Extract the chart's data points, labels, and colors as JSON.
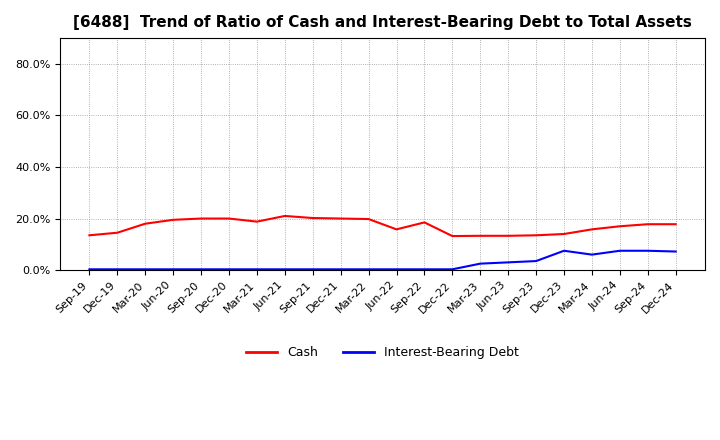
{
  "title": "[6488]  Trend of Ratio of Cash and Interest-Bearing Debt to Total Assets",
  "x_labels": [
    "Sep-19",
    "Dec-19",
    "Mar-20",
    "Jun-20",
    "Sep-20",
    "Dec-20",
    "Mar-21",
    "Jun-21",
    "Sep-21",
    "Dec-21",
    "Mar-22",
    "Jun-22",
    "Sep-22",
    "Dec-22",
    "Mar-23",
    "Jun-23",
    "Sep-23",
    "Dec-23",
    "Mar-24",
    "Jun-24",
    "Sep-24",
    "Dec-24"
  ],
  "cash": [
    0.135,
    0.145,
    0.18,
    0.195,
    0.2,
    0.2,
    0.188,
    0.21,
    0.202,
    0.2,
    0.198,
    0.158,
    0.185,
    0.132,
    0.133,
    0.133,
    0.135,
    0.14,
    0.158,
    0.17,
    0.178,
    0.178
  ],
  "debt": [
    0.003,
    0.003,
    0.003,
    0.003,
    0.003,
    0.003,
    0.003,
    0.003,
    0.003,
    0.003,
    0.003,
    0.003,
    0.003,
    0.003,
    0.025,
    0.03,
    0.035,
    0.075,
    0.06,
    0.075,
    0.075,
    0.072
  ],
  "cash_color": "#ff0000",
  "debt_color": "#0000ff",
  "background_color": "#ffffff",
  "grid_color": "#999999",
  "ylim": [
    0.0,
    0.9
  ],
  "yticks": [
    0.0,
    0.2,
    0.4,
    0.6,
    0.8
  ],
  "legend_labels": [
    "Cash",
    "Interest-Bearing Debt"
  ],
  "title_fontsize": 11,
  "tick_fontsize": 8
}
